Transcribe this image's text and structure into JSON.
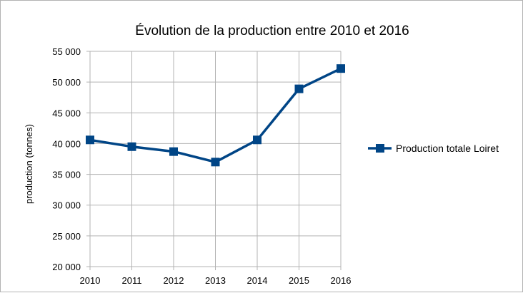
{
  "chart_data": {
    "type": "line",
    "title": "Évolution de la production entre 2010 et 2016",
    "xlabel": "",
    "ylabel": "production (tonnes)",
    "categories": [
      "2010",
      "2011",
      "2012",
      "2013",
      "2014",
      "2015",
      "2016"
    ],
    "series": [
      {
        "name": "Production totale Loiret",
        "values": [
          40600,
          39500,
          38700,
          37000,
          40600,
          48900,
          52200
        ],
        "color": "#004586",
        "marker": "square"
      }
    ],
    "ylim": [
      20000,
      55000
    ],
    "yticks": [
      20000,
      25000,
      30000,
      35000,
      40000,
      45000,
      50000,
      55000
    ],
    "ytick_labels": [
      "20 000",
      "25 000",
      "30 000",
      "35 000",
      "40 000",
      "45 000",
      "50 000",
      "55 000"
    ],
    "grid": "horizontal",
    "legend_position": "right"
  }
}
